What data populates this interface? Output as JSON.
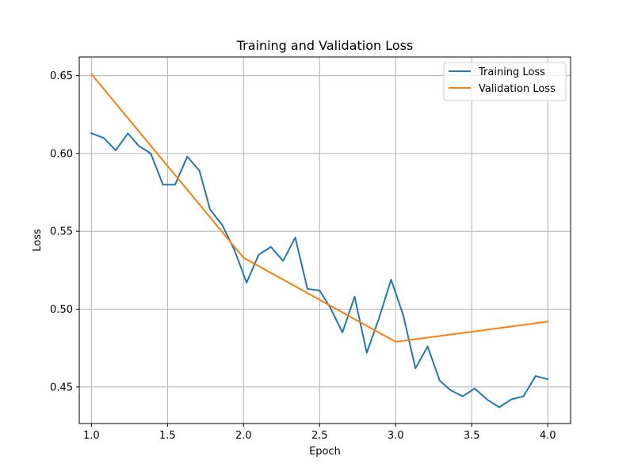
{
  "chart_data": {
    "type": "line",
    "title": "Training and Validation Loss",
    "xlabel": "Epoch",
    "ylabel": "Loss",
    "xlim": [
      0.92,
      4.15
    ],
    "ylim": [
      0.4265,
      0.662
    ],
    "xticks": [
      1.0,
      1.5,
      2.0,
      2.5,
      3.0,
      3.5,
      4.0
    ],
    "xtick_labels": [
      "1.0",
      "1.5",
      "2.0",
      "2.5",
      "3.0",
      "3.5",
      "4.0"
    ],
    "yticks": [
      0.45,
      0.5,
      0.55,
      0.6,
      0.65
    ],
    "ytick_labels": [
      "0.45",
      "0.50",
      "0.55",
      "0.60",
      "0.65"
    ],
    "grid": true,
    "legend_position": "top-right",
    "series": [
      {
        "name": "Training Loss",
        "color": "#1f77b4",
        "x": [
          1.0,
          1.08,
          1.16,
          1.24,
          1.31,
          1.39,
          1.47,
          1.55,
          1.63,
          1.71,
          1.78,
          1.86,
          1.94,
          2.02,
          2.1,
          2.18,
          2.26,
          2.34,
          2.42,
          2.5,
          2.57,
          2.65,
          2.73,
          2.81,
          2.89,
          2.97,
          3.05,
          3.13,
          3.21,
          3.29,
          3.36,
          3.44,
          3.52,
          3.6,
          3.68,
          3.76,
          3.84,
          3.92,
          4.0
        ],
        "y": [
          0.613,
          0.61,
          0.602,
          0.613,
          0.605,
          0.6,
          0.58,
          0.58,
          0.598,
          0.589,
          0.564,
          0.554,
          0.538,
          0.517,
          0.535,
          0.54,
          0.531,
          0.546,
          0.513,
          0.512,
          0.501,
          0.485,
          0.508,
          0.472,
          0.494,
          0.519,
          0.496,
          0.462,
          0.476,
          0.454,
          0.448,
          0.444,
          0.449,
          0.442,
          0.437,
          0.442,
          0.444,
          0.457,
          0.455
        ]
      },
      {
        "name": "Validation Loss",
        "color": "#ff7f0e",
        "x": [
          1.0,
          2.0,
          3.0,
          4.0
        ],
        "y": [
          0.651,
          0.533,
          0.479,
          0.492
        ]
      }
    ]
  }
}
